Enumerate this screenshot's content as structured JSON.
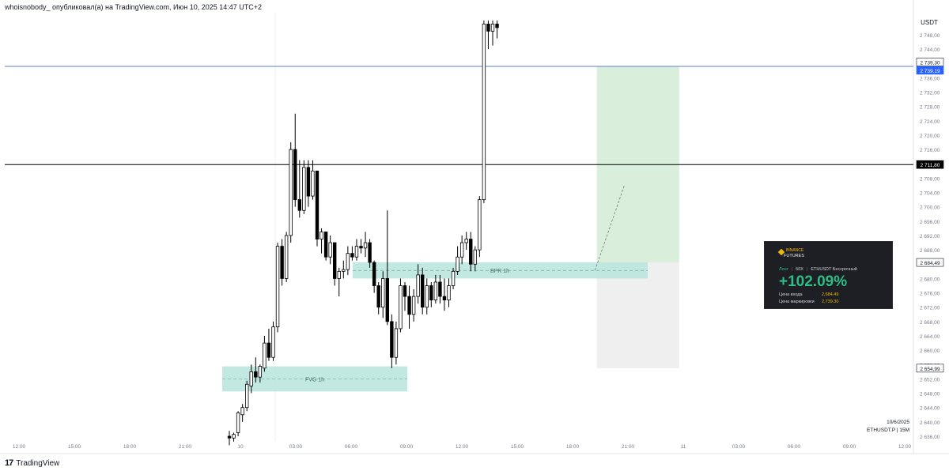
{
  "header": {
    "text": "whoisnobody_ опубликовал(а) на TradingView.com, Июн 10, 2025 14:47 UTC+2"
  },
  "footer": {
    "logo_text": "TradingView"
  },
  "corner_info": {
    "date": "10/6/2025",
    "symbol_line": "ETHUSDT.P | 15M"
  },
  "pnl_card": {
    "brand_top": "BINANCE",
    "brand_bottom": "FUTURES",
    "side": "Лонг",
    "leverage": "50X",
    "contract": "ETHUSDT Бессрочный",
    "pnl": "+102.09%",
    "entry_label": "Цена входа",
    "entry_value": "2,684.49",
    "mark_label": "Цена маркировки",
    "mark_value": "2,739.30"
  },
  "colors": {
    "up_body": "#ffffff",
    "down_body": "#000000",
    "wick": "#000000",
    "zone_fill": "#b6e4dc",
    "profit_fill": "#d9efdb",
    "loss_fill": "#efefef",
    "blue_line": "#5b7fcf",
    "black_line": "#000000"
  },
  "chart_data": {
    "type": "candlestick",
    "currency": "USDT",
    "interval": "15M",
    "ylim": [
      2634,
      2752
    ],
    "y_ticks": [
      "2 748,00",
      "2 744,00",
      "2 740,00",
      "2 736,00",
      "2 732,00",
      "2 728,00",
      "2 724,00",
      "2 720,00",
      "2 716,00",
      "2 712,00",
      "2 708,00",
      "2 704,00",
      "2 700,00",
      "2 696,00",
      "2 692,00",
      "2 688,00",
      "2 684,00",
      "2 680,00",
      "2 676,00",
      "2 672,00",
      "2 668,00",
      "2 664,00",
      "2 660,00",
      "2 656,00",
      "2 652,00",
      "2 648,00",
      "2 644,00",
      "2 640,00",
      "2 636,00"
    ],
    "y_tick_values": [
      2748,
      2744,
      2740,
      2736,
      2732,
      2728,
      2724,
      2720,
      2716,
      2712,
      2708,
      2704,
      2700,
      2696,
      2692,
      2688,
      2684,
      2680,
      2676,
      2672,
      2668,
      2664,
      2660,
      2656,
      2652,
      2648,
      2644,
      2640,
      2636
    ],
    "x_ticks": [
      "12:00",
      "15:00",
      "18:00",
      "21:00",
      "10",
      "03:00",
      "06:00",
      "09:00",
      "12:00",
      "15:00",
      "18:00",
      "21:00",
      "11",
      "03:00",
      "06:00",
      "09:00",
      "12:00"
    ],
    "price_labels": [
      {
        "text": "2 739,30",
        "value": 2739.3,
        "style": "plain"
      },
      {
        "text": "2 739,19",
        "value": 2739.19,
        "style": "blue"
      },
      {
        "text": "2 711,80",
        "value": 2711.8,
        "style": "black"
      },
      {
        "text": "2 684,49",
        "value": 2684.49,
        "style": "plain"
      },
      {
        "text": "2 654,99",
        "value": 2654.99,
        "style": "plain"
      }
    ],
    "horizontal_lines": [
      {
        "value": 2739.19,
        "style": "blue"
      },
      {
        "value": 2711.8,
        "style": "black"
      }
    ],
    "zones": [
      {
        "label": "FVG 1h",
        "top": 2655.5,
        "bottom": 2648.5,
        "start": 39,
        "end": 72
      },
      {
        "label": "BPR 1h",
        "top": 2684.5,
        "bottom": 2680,
        "start": 63,
        "end": 116
      }
    ],
    "position": {
      "side": "long",
      "entry": 2684.49,
      "target": 2739.19,
      "stop": 2654.99,
      "start": 83,
      "end": 96
    },
    "candles": [
      [
        2636,
        2637.5,
        2633.5,
        2635.5
      ],
      [
        2635.5,
        2637,
        2634.5,
        2636.5
      ],
      [
        2637,
        2643,
        2636,
        2642.5
      ],
      [
        2642,
        2645,
        2640,
        2644
      ],
      [
        2644,
        2651.5,
        2643,
        2650.5
      ],
      [
        2650,
        2656,
        2648,
        2654
      ],
      [
        2654,
        2658,
        2651,
        2652.5
      ],
      [
        2652.5,
        2656,
        2651,
        2655.5
      ],
      [
        2655,
        2664,
        2654,
        2662
      ],
      [
        2662,
        2666,
        2657,
        2658
      ],
      [
        2658,
        2668,
        2657,
        2666.5
      ],
      [
        2666.5,
        2690,
        2665,
        2689
      ],
      [
        2689,
        2691,
        2678,
        2680
      ],
      [
        2680,
        2693,
        2679,
        2692
      ],
      [
        2692,
        2718,
        2690,
        2716
      ],
      [
        2716,
        2726,
        2700,
        2702
      ],
      [
        2702,
        2713,
        2697,
        2699
      ],
      [
        2699,
        2713,
        2698,
        2711
      ],
      [
        2711,
        2713,
        2700,
        2703
      ],
      [
        2703,
        2713,
        2702,
        2710
      ],
      [
        2710,
        2710,
        2689,
        2691
      ],
      [
        2691,
        2694,
        2687,
        2693
      ],
      [
        2693,
        2693,
        2685,
        2686
      ],
      [
        2686,
        2692,
        2684,
        2690
      ],
      [
        2690,
        2690,
        2678,
        2680
      ],
      [
        2680,
        2683,
        2675,
        2682
      ],
      [
        2682,
        2685,
        2680,
        2682.5
      ],
      [
        2682.5,
        2689,
        2681,
        2687
      ],
      [
        2687,
        2689,
        2685,
        2686
      ],
      [
        2686,
        2691,
        2685,
        2689
      ],
      [
        2689,
        2691,
        2687,
        2688.5
      ],
      [
        2688.5,
        2693,
        2686,
        2690
      ],
      [
        2690,
        2691,
        2683,
        2684.5
      ],
      [
        2684.5,
        2685,
        2676,
        2678
      ],
      [
        2678,
        2679,
        2670,
        2672
      ],
      [
        2672,
        2682,
        2669,
        2680
      ],
      [
        2680,
        2699,
        2667,
        2668
      ],
      [
        2668,
        2670,
        2655,
        2658
      ],
      [
        2658,
        2668,
        2656,
        2666
      ],
      [
        2666,
        2680,
        2665,
        2678
      ],
      [
        2678,
        2679,
        2671,
        2675
      ],
      [
        2675,
        2678,
        2666,
        2670
      ],
      [
        2670,
        2677,
        2668,
        2675
      ],
      [
        2675,
        2684,
        2673,
        2681
      ],
      [
        2681,
        2683,
        2670,
        2672
      ],
      [
        2672,
        2680,
        2670,
        2678
      ],
      [
        2678,
        2679,
        2672,
        2674
      ],
      [
        2674,
        2681,
        2673,
        2679
      ],
      [
        2679,
        2681,
        2673,
        2675
      ],
      [
        2675,
        2680,
        2671,
        2674
      ],
      [
        2674,
        2680,
        2672,
        2678
      ],
      [
        2678,
        2683,
        2677,
        2682
      ],
      [
        2682,
        2689,
        2681,
        2686
      ],
      [
        2686,
        2692,
        2684,
        2690
      ],
      [
        2690,
        2693,
        2688,
        2691
      ],
      [
        2691,
        2693,
        2682,
        2684
      ],
      [
        2684,
        2689,
        2682,
        2688
      ],
      [
        2688,
        2703,
        2686,
        2702
      ],
      [
        2702,
        2752,
        2701,
        2751
      ],
      [
        2751,
        2752,
        2744,
        2749
      ],
      [
        2749,
        2752,
        2745,
        2751
      ],
      [
        2751,
        2752,
        2747,
        2750
      ]
    ]
  }
}
